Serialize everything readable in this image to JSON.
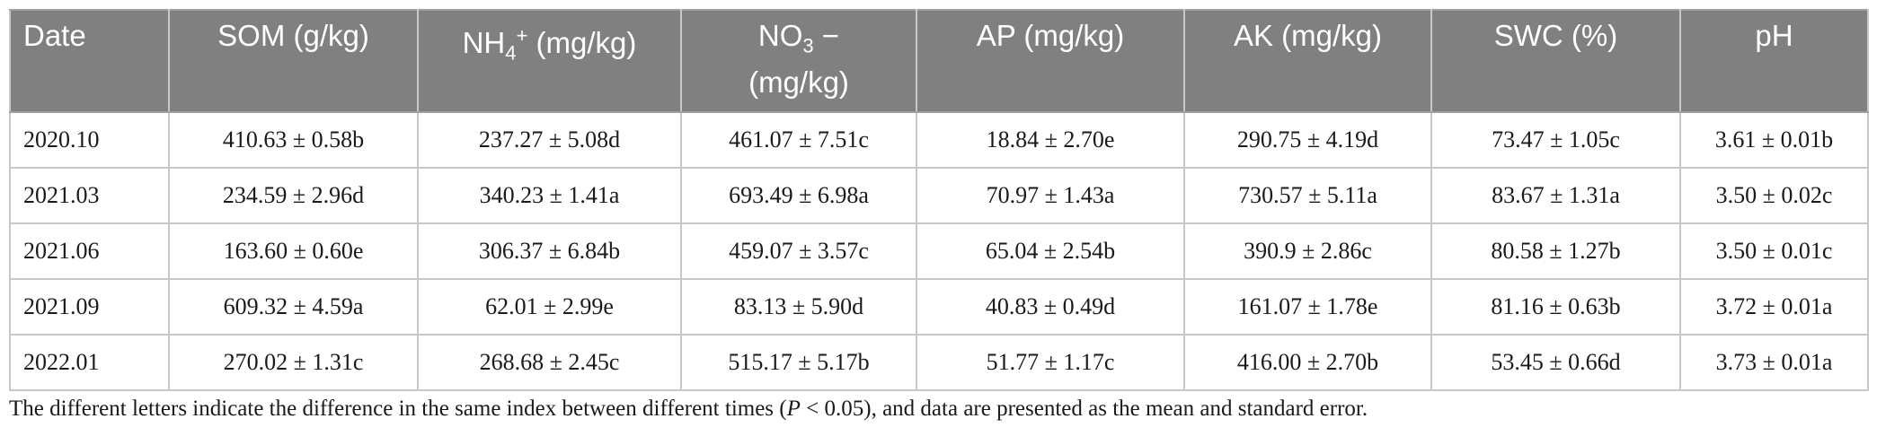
{
  "table": {
    "headers": [
      {
        "base": "Date"
      },
      {
        "base": "SOM (g/kg)"
      },
      {
        "pre": "NH",
        "sub": "4",
        "sup": "+",
        "post": " (mg/kg)"
      },
      {
        "pre": "NO",
        "sub": "3",
        "sup": "",
        "post": " −",
        "line2": "(mg/kg)"
      },
      {
        "base": "AP (mg/kg)"
      },
      {
        "base": "AK (mg/kg)"
      },
      {
        "base": "SWC (%)"
      },
      {
        "base": "pH"
      }
    ],
    "rows": [
      [
        "2020.10",
        "410.63 ± 0.58b",
        "237.27 ± 5.08d",
        "461.07 ± 7.51c",
        "18.84 ± 2.70e",
        "290.75 ± 4.19d",
        "73.47 ± 1.05c",
        "3.61 ± 0.01b"
      ],
      [
        "2021.03",
        "234.59 ± 2.96d",
        "340.23 ± 1.41a",
        "693.49 ± 6.98a",
        "70.97 ± 1.43a",
        "730.57 ± 5.11a",
        "83.67 ± 1.31a",
        "3.50 ± 0.02c"
      ],
      [
        "2021.06",
        "163.60 ± 0.60e",
        "306.37 ± 6.84b",
        "459.07 ± 3.57c",
        "65.04 ± 2.54b",
        "390.9 ± 2.86c",
        "80.58 ± 1.27b",
        "3.50 ± 0.01c"
      ],
      [
        "2021.09",
        "609.32 ± 4.59a",
        "62.01 ± 2.99e",
        "83.13 ± 5.90d",
        "40.83 ± 0.49d",
        "161.07 ± 1.78e",
        "81.16 ± 0.63b",
        "3.72 ± 0.01a"
      ],
      [
        "2022.01",
        "270.02 ± 1.31c",
        "268.68 ± 2.45c",
        "515.17 ± 5.17b",
        "51.77 ± 1.17c",
        "416.00 ± 2.70b",
        "53.45 ± 0.66d",
        "3.73 ± 0.01a"
      ]
    ]
  },
  "footnote": {
    "before": "The different letters indicate the difference in the same index between different times (",
    "p": "P",
    "after": " < 0.05), and data are presented as the mean and standard error."
  }
}
